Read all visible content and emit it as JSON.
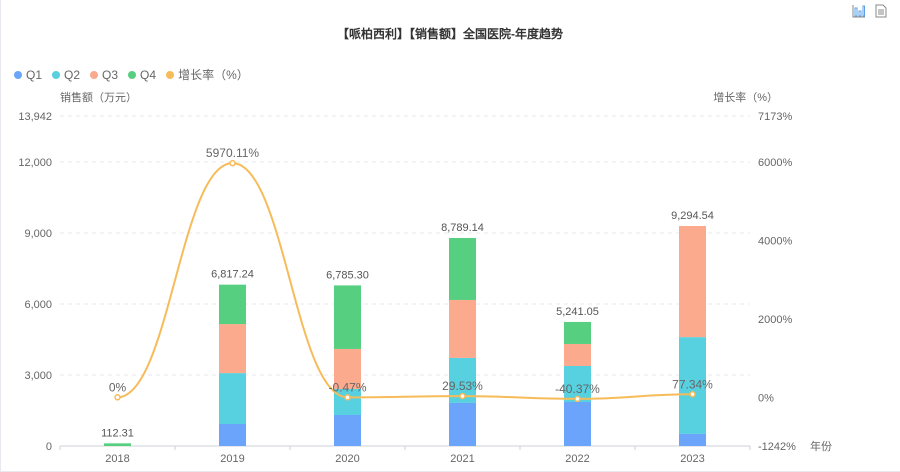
{
  "toolbar": {
    "icons": [
      "bar-chart-icon",
      "data-view-icon"
    ]
  },
  "chart_data": {
    "type": "bar",
    "title": "【哌柏西利】【销售额】全国医院-年度趋势",
    "categories": [
      "2018",
      "2019",
      "2020",
      "2021",
      "2022",
      "2023"
    ],
    "xlabel": "年份",
    "ylabel": "销售额（万元）",
    "y2label": "增长率（%）",
    "ylim": [
      0,
      13942
    ],
    "yticks": [
      "0",
      "3,000",
      "6,000",
      "9,000",
      "12,000",
      "13,942"
    ],
    "ytick_values": [
      0,
      3000,
      6000,
      9000,
      12000,
      13942
    ],
    "y2lim": [
      -1242,
      7173
    ],
    "y2ticks": [
      "-1242%",
      "0%",
      "2000%",
      "4000%",
      "6000%",
      "7173%"
    ],
    "y2tick_values": [
      -1242,
      0,
      2000,
      4000,
      6000,
      7173
    ],
    "legend_position": "top-left",
    "series": [
      {
        "name": "Q1",
        "color": "#6aa5fb",
        "values": [
          0,
          930,
          1310,
          1820,
          1860,
          510
        ]
      },
      {
        "name": "Q2",
        "color": "#57d0df",
        "values": [
          0,
          2150,
          1100,
          1900,
          1520,
          4090
        ]
      },
      {
        "name": "Q3",
        "color": "#fcaa8d",
        "values": [
          0,
          2070,
          1690,
          2450,
          930,
          4695
        ]
      },
      {
        "name": "Q4",
        "color": "#57cf80",
        "values": [
          112.31,
          1667.24,
          2685.3,
          2619.14,
          931.05,
          0
        ]
      }
    ],
    "totals": [
      112.31,
      6817.24,
      6785.3,
      8789.14,
      5241.05,
      9294.54
    ],
    "total_labels": [
      "112.31",
      "6,817.24",
      "6,785.30",
      "8,789.14",
      "5,241.05",
      "9,294.54"
    ],
    "growth": {
      "name": "增长率（%）",
      "color": "#f7bb5a",
      "values": [
        0,
        5970.11,
        -0.47,
        29.53,
        -40.37,
        77.34
      ],
      "labels": [
        "0%",
        "5970.11%",
        "-0.47%",
        "29.53%",
        "-40.37%",
        "77.34%"
      ]
    }
  }
}
